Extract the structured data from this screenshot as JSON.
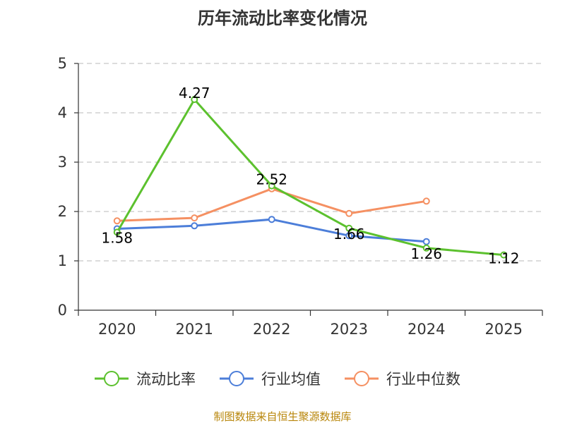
{
  "chart_data": {
    "type": "line",
    "title": "历年流动比率变化情况",
    "categories": [
      "2020",
      "2021",
      "2022",
      "2023",
      "2024",
      "2025"
    ],
    "ylim": [
      0,
      5
    ],
    "yticks": [
      0,
      1,
      2,
      3,
      4,
      5
    ],
    "grid": true,
    "legend_position": "bottom",
    "series": [
      {
        "name": "流动比率",
        "color": "#5cc12e",
        "values": [
          1.58,
          4.27,
          2.52,
          1.66,
          1.26,
          1.12
        ],
        "data_labels": [
          "1.58",
          "4.27",
          "2.52",
          "1.66",
          "1.26",
          "1.12"
        ]
      },
      {
        "name": "行业均值",
        "color": "#4c7ed9",
        "values": [
          1.65,
          1.71,
          1.84,
          1.51,
          1.39,
          null
        ]
      },
      {
        "name": "行业中位数",
        "color": "#f59062",
        "values": [
          1.81,
          1.87,
          2.46,
          1.96,
          2.21,
          null
        ]
      }
    ],
    "source": "制图数据来自恒生聚源数据库"
  }
}
